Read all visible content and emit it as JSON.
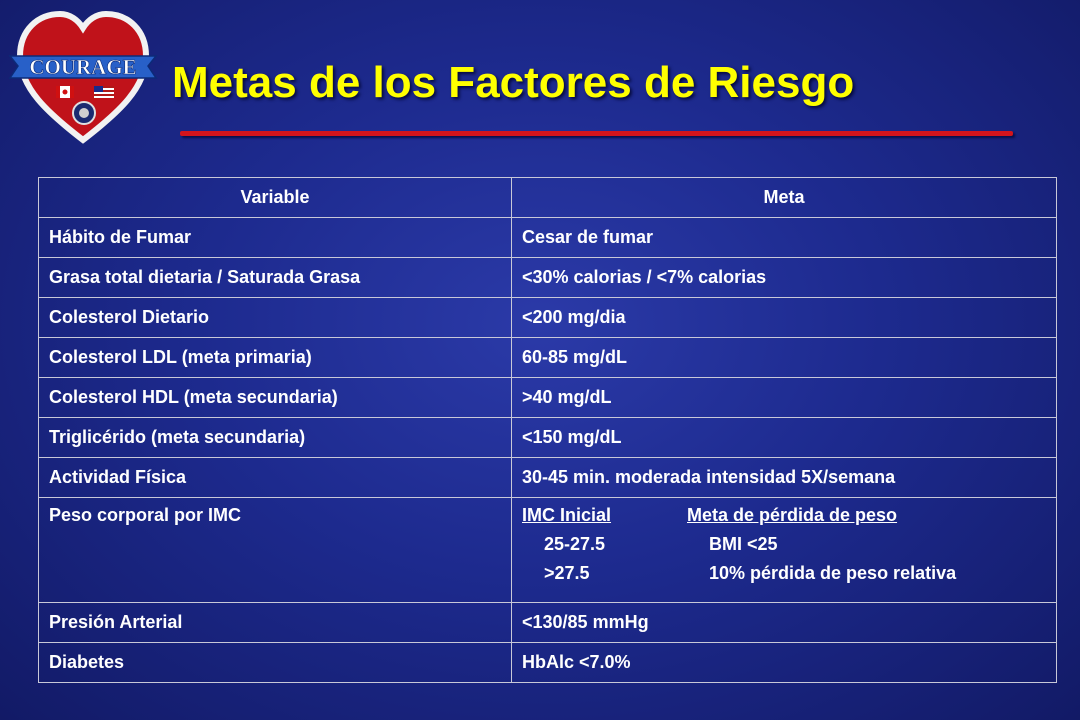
{
  "logo": {
    "text": "COURAGE"
  },
  "title": "Metas de los Factores de Riesgo",
  "colors": {
    "background": "#1d2a8e",
    "title": "#ffff00",
    "rule": "#d3141c",
    "text": "#ffffff"
  },
  "table": {
    "headers": [
      "Variable",
      "Meta"
    ],
    "rows": [
      [
        "Hábito de Fumar",
        "Cesar de fumar"
      ],
      [
        "Grasa total dietaria / Saturada Grasa",
        "<30% calorias / <7% calorias"
      ],
      [
        "Colesterol Dietario",
        "<200 mg/dia"
      ],
      [
        "Colesterol LDL (meta primaria)",
        "60-85 mg/dL"
      ],
      [
        "Colesterol HDL (meta secundaria)",
        ">40 mg/dL"
      ],
      [
        "Triglicérido (meta secundaria)",
        "<150 mg/dL"
      ],
      [
        "Actividad Física",
        "30-45 min. moderada intensidad 5X/semana"
      ]
    ],
    "bmi_row": {
      "variable": "Peso corporal por IMC",
      "col_a_header": "IMC Inicial",
      "col_b_header": "Meta de pérdida de peso",
      "lines": [
        [
          "25-27.5",
          "BMI <25"
        ],
        [
          ">27.5",
          "10% pérdida de peso relativa"
        ]
      ]
    },
    "rows_after": [
      [
        "Presión Arterial",
        "<130/85 mmHg"
      ],
      [
        "Diabetes",
        "HbAlc <7.0%"
      ]
    ]
  }
}
